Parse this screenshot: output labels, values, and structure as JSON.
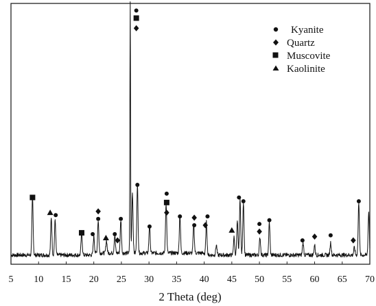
{
  "chart_data": {
    "type": "line",
    "title": "",
    "xlabel": "2 Theta (deg)",
    "ylabel": "",
    "xlim": [
      5,
      70
    ],
    "ylim": [
      0,
      100
    ],
    "x_ticks": [
      "5",
      "10",
      "15",
      "20",
      "25",
      "30",
      "35",
      "40",
      "45",
      "50",
      "55",
      "60",
      "65",
      "70"
    ],
    "legend": {
      "placement": "top-right",
      "entries": [
        {
          "label": "Kyanite",
          "marker": "circle"
        },
        {
          "label": "Quartz",
          "marker": "diamond"
        },
        {
          "label": "Muscovite",
          "marker": "square"
        },
        {
          "label": "Kaolinite",
          "marker": "triangle"
        }
      ]
    },
    "series": [
      {
        "peaks": [
          {
            "x": 8.9,
            "y": 23
          },
          {
            "x": 12.3,
            "y": 15
          },
          {
            "x": 13.0,
            "y": 14
          },
          {
            "x": 17.8,
            "y": 9
          },
          {
            "x": 20.0,
            "y": 7
          },
          {
            "x": 20.8,
            "y": 13
          },
          {
            "x": 22.3,
            "y": 5
          },
          {
            "x": 23.8,
            "y": 7
          },
          {
            "x": 24.9,
            "y": 13
          },
          {
            "x": 26.6,
            "y": 100
          },
          {
            "x": 27.0,
            "y": 24
          },
          {
            "x": 27.9,
            "y": 27
          },
          {
            "x": 30.1,
            "y": 11
          },
          {
            "x": 33.1,
            "y": 20
          },
          {
            "x": 35.6,
            "y": 15
          },
          {
            "x": 38.1,
            "y": 11
          },
          {
            "x": 40.4,
            "y": 13
          },
          {
            "x": 42.2,
            "y": 4
          },
          {
            "x": 45.4,
            "y": 7
          },
          {
            "x": 46.0,
            "y": 13
          },
          {
            "x": 46.5,
            "y": 22
          },
          {
            "x": 47.1,
            "y": 21
          },
          {
            "x": 50.1,
            "y": 7
          },
          {
            "x": 51.8,
            "y": 13
          },
          {
            "x": 57.9,
            "y": 5
          },
          {
            "x": 60.0,
            "y": 4
          },
          {
            "x": 62.9,
            "y": 5
          },
          {
            "x": 67.2,
            "y": 3
          },
          {
            "x": 68.0,
            "y": 21
          },
          {
            "x": 69.8,
            "y": 17
          }
        ]
      }
    ],
    "phase_markers": [
      {
        "x": 8.9,
        "y": 24,
        "phase": "square"
      },
      {
        "x": 12.1,
        "y": 18,
        "phase": "triangle"
      },
      {
        "x": 13.1,
        "y": 17,
        "phase": "circle"
      },
      {
        "x": 17.8,
        "y": 10,
        "phase": "square"
      },
      {
        "x": 19.8,
        "y": 9.5,
        "phase": "circle"
      },
      {
        "x": 20.8,
        "y": 18.5,
        "phase": "diamond"
      },
      {
        "x": 20.8,
        "y": 15.5,
        "phase": "circle"
      },
      {
        "x": 22.2,
        "y": 8,
        "phase": "triangle"
      },
      {
        "x": 23.8,
        "y": 9.5,
        "phase": "circle"
      },
      {
        "x": 24.3,
        "y": 7,
        "phase": "diamond"
      },
      {
        "x": 24.9,
        "y": 15.5,
        "phase": "circle"
      },
      {
        "x": 27.7,
        "y": 98,
        "phase": "circle"
      },
      {
        "x": 27.7,
        "y": 95,
        "phase": "square"
      },
      {
        "x": 27.7,
        "y": 91,
        "phase": "diamond"
      },
      {
        "x": 27.9,
        "y": 29,
        "phase": "circle"
      },
      {
        "x": 30.1,
        "y": 12.5,
        "phase": "circle"
      },
      {
        "x": 33.2,
        "y": 25.5,
        "phase": "circle"
      },
      {
        "x": 33.2,
        "y": 22,
        "phase": "square"
      },
      {
        "x": 33.2,
        "y": 18,
        "phase": "diamond"
      },
      {
        "x": 35.6,
        "y": 16.5,
        "phase": "circle"
      },
      {
        "x": 38.2,
        "y": 16,
        "phase": "diamond"
      },
      {
        "x": 38.2,
        "y": 13,
        "phase": "circle"
      },
      {
        "x": 40.2,
        "y": 13,
        "phase": "diamond"
      },
      {
        "x": 40.6,
        "y": 16.5,
        "phase": "circle"
      },
      {
        "x": 45.0,
        "y": 11,
        "phase": "triangle"
      },
      {
        "x": 46.3,
        "y": 24,
        "phase": "circle"
      },
      {
        "x": 47.1,
        "y": 22.5,
        "phase": "circle"
      },
      {
        "x": 50.0,
        "y": 13.5,
        "phase": "circle"
      },
      {
        "x": 50.0,
        "y": 10.5,
        "phase": "diamond"
      },
      {
        "x": 51.8,
        "y": 15,
        "phase": "circle"
      },
      {
        "x": 57.8,
        "y": 7,
        "phase": "circle"
      },
      {
        "x": 60.0,
        "y": 8.5,
        "phase": "diamond"
      },
      {
        "x": 62.9,
        "y": 9,
        "phase": "circle"
      },
      {
        "x": 67.0,
        "y": 7,
        "phase": "diamond"
      },
      {
        "x": 68.0,
        "y": 22.5,
        "phase": "circle"
      }
    ],
    "grid": false
  }
}
